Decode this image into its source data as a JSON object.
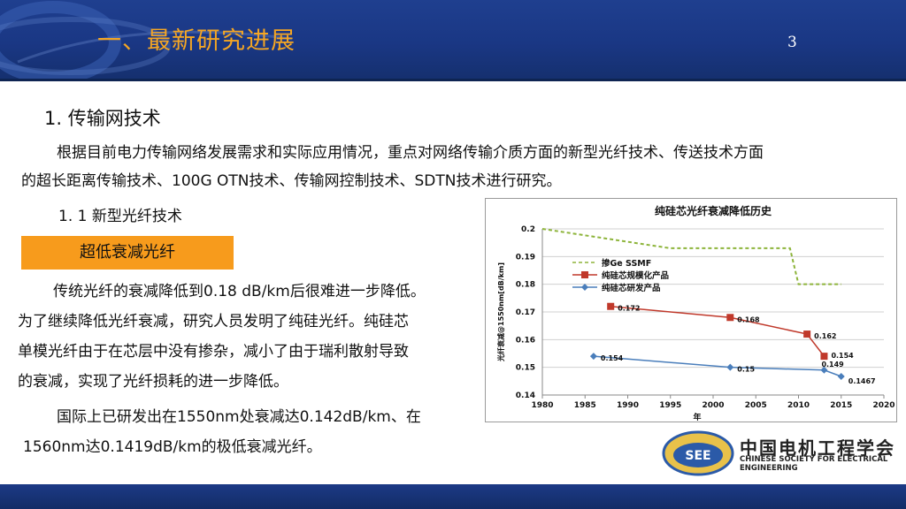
{
  "header": {
    "title": "一、最新研究进展",
    "page_number": "3",
    "title_color": "#f5a623",
    "bar_color": "#1a3784"
  },
  "section": {
    "title": "1. 传输网技术",
    "intro_line1": "根据目前电力传输网络发展需求和实际应用情况，重点对网络传输介质方面的新型光纤技术、传送技术方面",
    "intro_line2": "的超长距离传输技术、100G OTN技术、传输网控制技术、SDTN技术进行研究。",
    "subsection_title": "1. 1  新型光纤技术",
    "tag_label": "超低衰减光纤",
    "tag_color": "#f79b1c",
    "body_line1": "传统光纤的衰减降低到0.18  dB/km后很难进一步降低。",
    "body_line2": "为了继续降低光纤衰减，研究人员发明了纯硅光纤。纯硅芯",
    "body_line3": "单模光纤由于在芯层中没有掺杂，减小了由于瑞利散射导致",
    "body_line4": "的衰减，实现了光纤损耗的进一步降低。",
    "body_line5": "国际上已研发出在1550nm处衰减达0.142dB/km、在",
    "body_line6": "1560nm达0.1419dB/km的极低衰减光纤。"
  },
  "chart_data": {
    "type": "line",
    "title": "纯硅芯光纤衰减降低历史",
    "xlabel": "年",
    "ylabel": "光纤衰减@1550nm[dB/km]",
    "xlim": [
      1980,
      2020
    ],
    "ylim": [
      0.14,
      0.2
    ],
    "xticks": [
      "1980",
      "1985",
      "1990",
      "1995",
      "2000",
      "2005",
      "2010",
      "2015",
      "2020"
    ],
    "yticks": [
      "0.14",
      "0.15",
      "0.16",
      "0.17",
      "0.18",
      "0.19",
      "0.2"
    ],
    "grid": "horizontal",
    "legend_position": "upper-left",
    "series": [
      {
        "name": "掺Ge SSMF",
        "color": "#8db43a",
        "style": "dashed",
        "x": [
          1980,
          1995,
          2009,
          2010,
          2015
        ],
        "y": [
          0.2,
          0.193,
          0.193,
          0.18,
          0.18
        ],
        "labels": []
      },
      {
        "name": "纯硅芯规模化产品",
        "color": "#c0392b",
        "marker": "square",
        "x": [
          1988,
          2002,
          2011,
          2013
        ],
        "y": [
          0.172,
          0.168,
          0.162,
          0.154
        ],
        "labels": [
          "0.172",
          "0.168",
          "0.162",
          "0.154"
        ]
      },
      {
        "name": "纯硅芯研发产品",
        "color": "#4a7ebb",
        "marker": "diamond",
        "x": [
          1986,
          2002,
          2013,
          2015
        ],
        "y": [
          0.154,
          0.15,
          0.149,
          0.1467
        ],
        "labels": [
          "0.154",
          "0.15",
          "0.149",
          "0.1467"
        ]
      }
    ]
  },
  "logo": {
    "abbr": "SEE",
    "org_cn": "中国电机工程学会",
    "org_en": "CHINESE SOCIETY FOR ELECTRICAL ENGINEERING"
  }
}
